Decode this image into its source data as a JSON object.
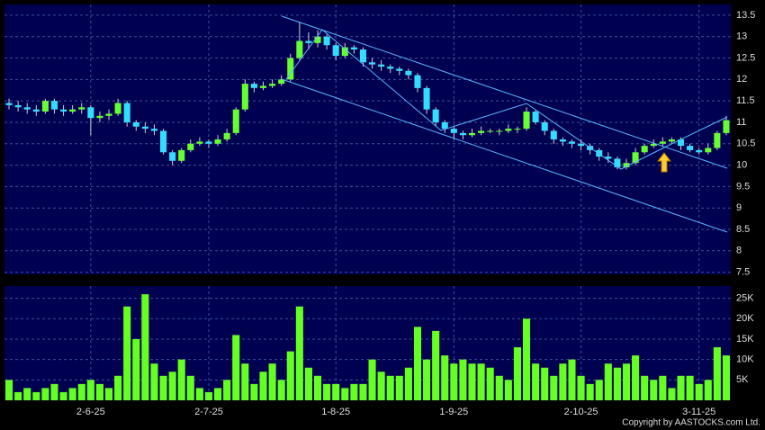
{
  "chart_data": {
    "type": "candlestick",
    "categories": [
      null,
      null,
      null,
      null,
      null,
      null,
      null,
      null,
      null,
      "2-6-25",
      null,
      null,
      null,
      null,
      null,
      null,
      null,
      null,
      null,
      null,
      null,
      null,
      "2-7-25",
      null,
      null,
      null,
      null,
      null,
      null,
      null,
      null,
      null,
      null,
      null,
      null,
      null,
      "1-8-25",
      null,
      null,
      null,
      null,
      null,
      null,
      null,
      null,
      null,
      null,
      null,
      null,
      "1-9-25",
      null,
      null,
      null,
      null,
      null,
      null,
      null,
      null,
      null,
      null,
      null,
      null,
      null,
      "2-10-25",
      null,
      null,
      null,
      null,
      null,
      null,
      null,
      null,
      null,
      null,
      null,
      null,
      "3-11-25",
      null,
      null,
      null
    ],
    "open": [
      11.45,
      11.4,
      11.35,
      11.3,
      11.25,
      11.5,
      11.3,
      11.25,
      11.3,
      11.35,
      11.1,
      11.15,
      11.2,
      11.45,
      11.0,
      10.9,
      10.85,
      10.8,
      10.3,
      10.1,
      10.35,
      10.5,
      10.55,
      10.5,
      10.6,
      10.75,
      11.3,
      11.9,
      11.8,
      11.85,
      11.9,
      12.0,
      12.5,
      12.9,
      12.85,
      13.0,
      12.8,
      12.55,
      12.75,
      12.7,
      12.4,
      12.35,
      12.3,
      12.25,
      12.2,
      12.1,
      11.8,
      11.3,
      11.0,
      10.85,
      10.75,
      10.7,
      10.75,
      10.8,
      10.8,
      10.8,
      10.85,
      10.85,
      11.25,
      11.0,
      10.8,
      10.6,
      10.55,
      10.5,
      10.45,
      10.35,
      10.2,
      10.15,
      9.95,
      10.05,
      10.3,
      10.45,
      10.5,
      10.55,
      10.6,
      10.45,
      10.35,
      10.3,
      10.4,
      10.75
    ],
    "high": [
      11.55,
      11.5,
      11.45,
      11.4,
      11.55,
      11.55,
      11.4,
      11.4,
      11.45,
      11.4,
      11.25,
      11.3,
      11.55,
      11.5,
      11.05,
      11.0,
      10.95,
      10.85,
      10.35,
      10.4,
      10.6,
      10.65,
      10.6,
      10.7,
      10.85,
      11.35,
      12.0,
      11.95,
      11.95,
      12.0,
      12.1,
      12.6,
      13.35,
      13.1,
      13.15,
      13.05,
      12.85,
      12.85,
      12.8,
      12.75,
      12.5,
      12.45,
      12.35,
      12.3,
      12.25,
      12.15,
      11.85,
      11.35,
      11.05,
      10.9,
      10.8,
      10.85,
      10.9,
      10.85,
      10.85,
      10.95,
      10.9,
      11.35,
      11.3,
      11.05,
      10.85,
      10.65,
      10.6,
      10.6,
      10.5,
      10.4,
      10.3,
      10.2,
      10.15,
      10.4,
      10.5,
      10.6,
      10.65,
      10.65,
      10.65,
      10.5,
      10.4,
      10.5,
      10.8,
      11.15
    ],
    "low": [
      11.3,
      11.25,
      11.2,
      11.15,
      11.2,
      11.2,
      11.15,
      11.2,
      11.2,
      10.7,
      11.0,
      11.05,
      11.15,
      10.9,
      10.8,
      10.75,
      10.7,
      10.25,
      10.0,
      10.05,
      10.3,
      10.45,
      10.4,
      10.45,
      10.55,
      10.7,
      11.25,
      11.7,
      11.75,
      11.8,
      11.85,
      11.95,
      12.45,
      12.7,
      12.75,
      12.7,
      12.45,
      12.5,
      12.6,
      12.3,
      12.25,
      12.2,
      12.15,
      12.1,
      12.0,
      11.7,
      11.2,
      10.9,
      10.75,
      10.6,
      10.6,
      10.65,
      10.7,
      10.75,
      10.7,
      10.75,
      10.75,
      10.8,
      10.95,
      10.7,
      10.5,
      10.45,
      10.4,
      10.35,
      10.25,
      10.1,
      10.05,
      9.9,
      9.9,
      10.0,
      10.25,
      10.4,
      10.45,
      10.5,
      10.35,
      10.3,
      10.25,
      10.25,
      10.35,
      10.7
    ],
    "close": [
      11.4,
      11.35,
      11.3,
      11.25,
      11.5,
      11.3,
      11.25,
      11.3,
      11.35,
      11.1,
      11.15,
      11.2,
      11.45,
      11.0,
      10.9,
      10.85,
      10.8,
      10.3,
      10.1,
      10.35,
      10.5,
      10.55,
      10.5,
      10.6,
      10.75,
      11.3,
      11.9,
      11.8,
      11.85,
      11.9,
      12.0,
      12.5,
      12.9,
      12.85,
      13.0,
      12.8,
      12.55,
      12.75,
      12.7,
      12.4,
      12.35,
      12.3,
      12.25,
      12.2,
      12.1,
      11.8,
      11.3,
      11.0,
      10.85,
      10.75,
      10.7,
      10.75,
      10.8,
      10.8,
      10.8,
      10.85,
      10.85,
      11.25,
      11.0,
      10.8,
      10.6,
      10.55,
      10.5,
      10.45,
      10.35,
      10.2,
      10.15,
      9.95,
      10.05,
      10.3,
      10.45,
      10.5,
      10.55,
      10.6,
      10.45,
      10.35,
      10.3,
      10.4,
      10.75,
      11.05
    ],
    "up_color": "#66ff33",
    "down_color": "#33ddff",
    "ylim": [
      7.45,
      13.75
    ],
    "yticks": [
      7.5,
      8,
      8.5,
      9,
      9.5,
      10,
      10.5,
      11,
      11.5,
      12,
      12.5,
      13,
      13.5
    ],
    "grid": true,
    "volume": {
      "color": "#66ff22",
      "values": [
        5000,
        2000,
        3000,
        2000,
        3000,
        4000,
        2000,
        3000,
        4000,
        5000,
        4000,
        3000,
        6000,
        23000,
        15000,
        26000,
        9000,
        6000,
        7000,
        10000,
        6000,
        3000,
        2000,
        3000,
        5000,
        16000,
        9000,
        4000,
        7000,
        9000,
        5000,
        12000,
        23000,
        8000,
        6000,
        4000,
        4000,
        3000,
        4000,
        4000,
        10000,
        7000,
        6000,
        6000,
        8000,
        18000,
        10000,
        17000,
        11000,
        9000,
        10000,
        9000,
        9000,
        8000,
        6000,
        5000,
        13000,
        20000,
        9000,
        8000,
        6000,
        9000,
        10000,
        6000,
        4000,
        5000,
        9000,
        8000,
        9000,
        11000,
        6000,
        5000,
        6000,
        3000,
        6000,
        6000,
        4000,
        5000,
        13000,
        11000
      ],
      "ylim": [
        0,
        28000
      ],
      "yticks": [
        {
          "value": 5000,
          "label": "5K"
        },
        {
          "value": 10000,
          "label": "10K"
        },
        {
          "value": 15000,
          "label": "15K"
        },
        {
          "value": 20000,
          "label": "20K"
        },
        {
          "value": 25000,
          "label": "25K"
        }
      ]
    },
    "source": "Copyright by AASTOCKS.com Ltd."
  }
}
